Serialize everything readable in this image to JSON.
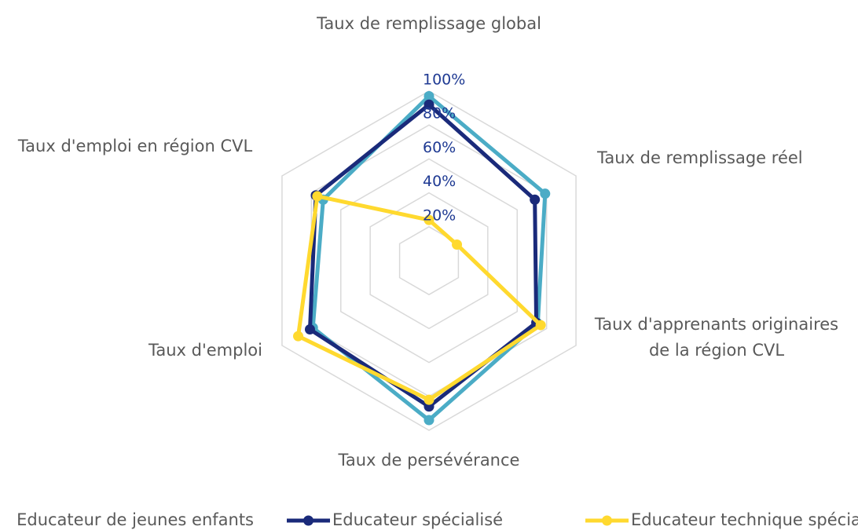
{
  "chart_data": {
    "type": "radar",
    "categories": [
      "Taux de remplissage global",
      "Taux de remplissage réel",
      "Taux d'apprenants originaires de la région CVL",
      "Taux de persévérance",
      "Taux d'emploi",
      "Taux d'emploi en région CVL"
    ],
    "series": [
      {
        "name": "Educateur de jeunes enfants",
        "color": "#4bacc6",
        "values": [
          97,
          79,
          74,
          94,
          79,
          72
        ]
      },
      {
        "name": "Educateur spécialisé",
        "color": "#1a2a7a",
        "values": [
          92,
          72,
          73,
          86,
          81,
          77
        ]
      },
      {
        "name": "Educateur technique spécialisé",
        "color": "#ffd92f",
        "values": [
          24,
          19,
          76,
          82,
          89,
          76
        ]
      }
    ],
    "ylim": [
      0,
      100
    ],
    "yticks": [
      {
        "value": 20,
        "label": "20%"
      },
      {
        "value": 40,
        "label": "40%"
      },
      {
        "value": 60,
        "label": "60%"
      },
      {
        "value": 80,
        "label": "80%"
      },
      {
        "value": 100,
        "label": "100%"
      }
    ],
    "grid": true
  }
}
